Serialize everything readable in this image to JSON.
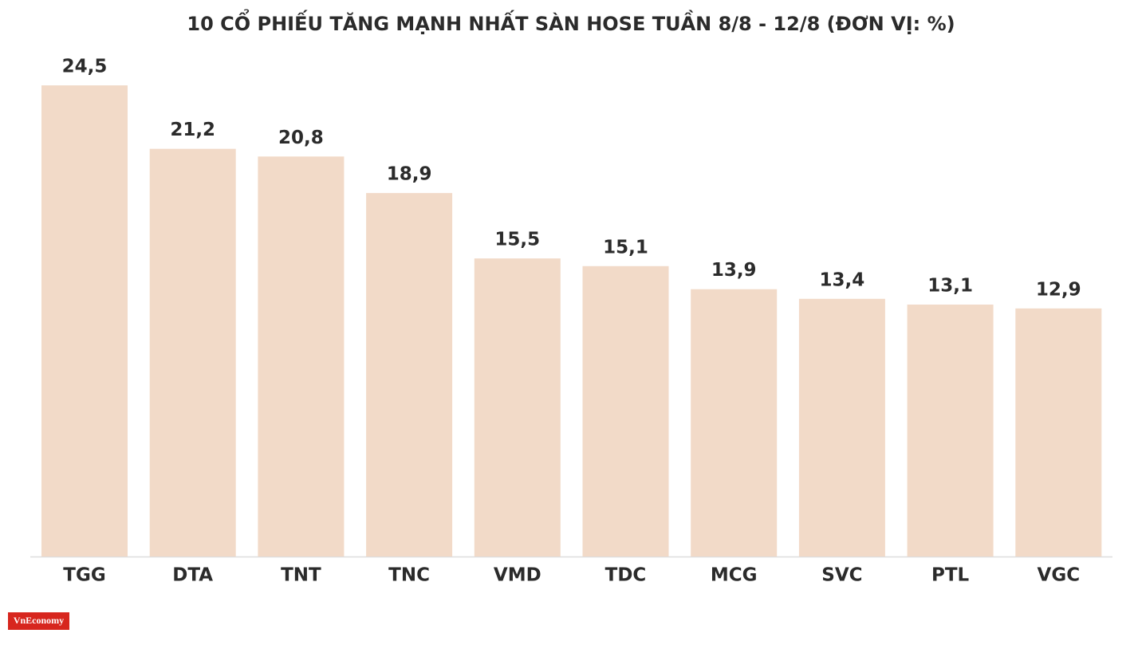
{
  "chart_data": {
    "type": "bar",
    "title": "10 CỔ PHIẾU TĂNG MẠNH NHẤT SÀN HOSE TUẦN 8/8 - 12/8 (ĐƠN VỊ: %)",
    "categories": [
      "TGG",
      "DTA",
      "TNT",
      "TNC",
      "VMD",
      "TDC",
      "MCG",
      "SVC",
      "PTL",
      "VGC"
    ],
    "values": [
      24.5,
      21.2,
      20.8,
      18.9,
      15.5,
      15.1,
      13.9,
      13.4,
      13.1,
      12.9
    ],
    "value_labels": [
      "24,5",
      "21,2",
      "20,8",
      "18,9",
      "15,5",
      "15,1",
      "13,9",
      "13,4",
      "13,1",
      "12,9"
    ],
    "color": "#f2dac8"
  },
  "logo": "VnEconomy"
}
